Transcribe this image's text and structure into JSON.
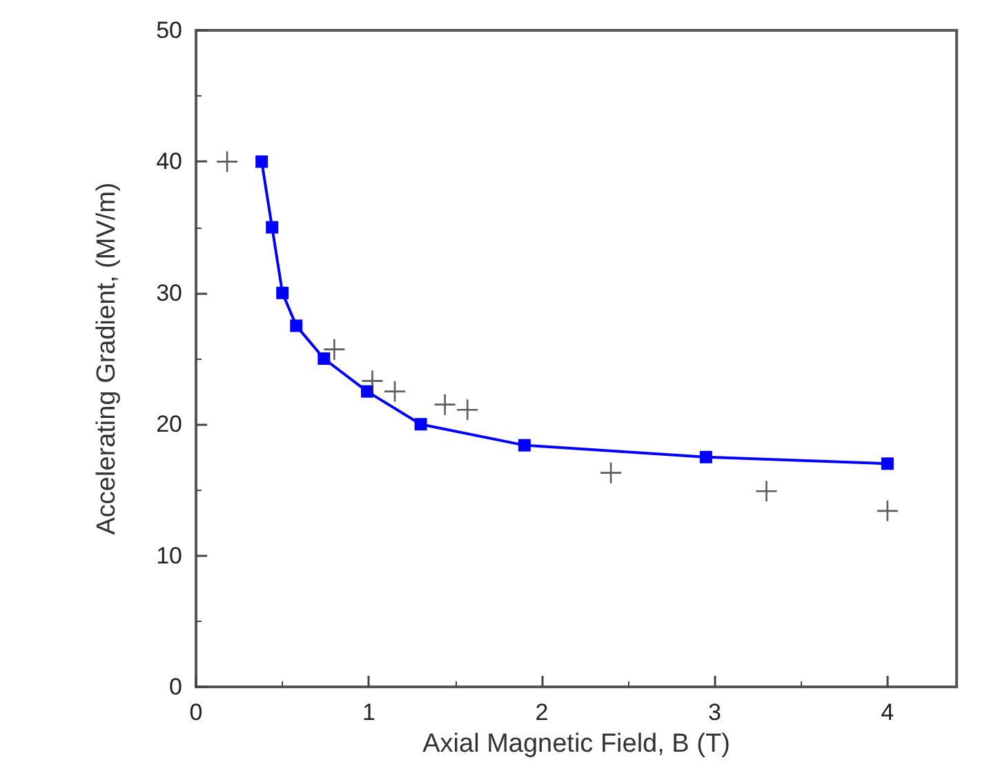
{
  "chart_data": {
    "type": "line",
    "xlabel": "Axial Magnetic Field, B (T)",
    "ylabel": "Accelerating Gradient, (MV/m)",
    "series": [
      {
        "color": "#0000ff",
        "marker": "square",
        "x": [
          0.38,
          0.44,
          0.5,
          0.58,
          0.74,
          0.99,
          1.3,
          1.9,
          2.95,
          4.0
        ],
        "values": [
          40,
          35,
          30,
          27.5,
          25,
          22.5,
          20,
          18.4,
          17.5,
          17
        ]
      },
      {
        "type": "scatter",
        "color": "#333333",
        "marker": "cross",
        "x": [
          0.18,
          0.8,
          1.02,
          1.15,
          1.44,
          1.57,
          2.4,
          3.3,
          4.0
        ],
        "values": [
          40,
          25.7,
          23.3,
          22.5,
          21.5,
          21.1,
          16.3,
          14.9,
          13.4
        ]
      }
    ],
    "xlim": [
      0,
      4.4
    ],
    "xticks": [
      0,
      1,
      2,
      3,
      4
    ],
    "ylim": [
      0,
      50
    ],
    "yticks": [
      0,
      10,
      20,
      30,
      40,
      50
    ],
    "grid": false
  }
}
